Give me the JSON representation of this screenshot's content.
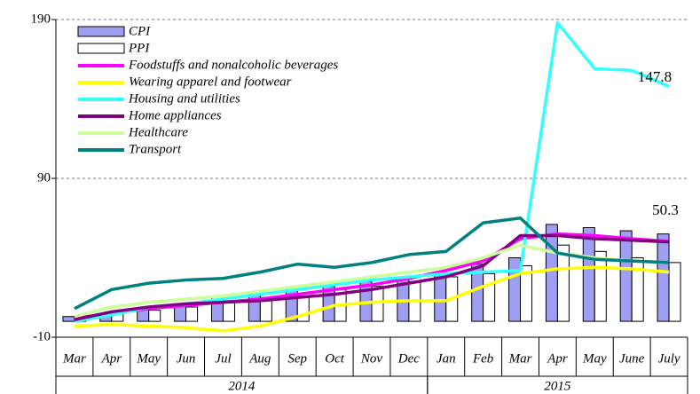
{
  "chart_data": {
    "type": "bar_line",
    "categories": [
      "Mar",
      "Apr",
      "May",
      "Jun",
      "Jul",
      "Aug",
      "Sep",
      "Oct",
      "Nov",
      "Dec",
      "Jan",
      "Feb",
      "Mar",
      "Apr",
      "May",
      "June",
      "July"
    ],
    "groups": [
      {
        "label": "2014",
        "span": 10
      },
      {
        "label": "2015",
        "span": 7
      }
    ],
    "ylim": [
      -10,
      190
    ],
    "yticks": [
      -10,
      90,
      190
    ],
    "grid": true,
    "bars": [
      {
        "name": "CPI",
        "color": "#9f9ff2",
        "values": [
          3,
          5,
          8,
          11,
          14,
          17,
          20,
          22,
          25,
          28,
          31,
          36,
          40,
          61,
          59,
          57,
          55
        ]
      },
      {
        "name": "PPI",
        "color": "#ffffff",
        "values": [
          2,
          5,
          7,
          9,
          13,
          15,
          16,
          20,
          22,
          25,
          28,
          30,
          35,
          48,
          44,
          40,
          37
        ]
      }
    ],
    "series": [
      {
        "name": "Foodstuffs and nonalcoholic beverages",
        "color": "#ff00ff",
        "values": [
          2,
          5,
          8,
          10,
          12,
          14,
          17,
          20,
          23,
          27,
          32,
          38,
          52,
          55,
          54,
          52,
          50.3
        ]
      },
      {
        "name": "Wearing apparel and footwear",
        "color": "#ffff00",
        "values": [
          -3,
          -2,
          -3,
          -4,
          -6,
          -3,
          3,
          10,
          12,
          13,
          13,
          22,
          30,
          33,
          34,
          33,
          31
        ]
      },
      {
        "name": "Housing and utilities",
        "color": "#33ffff",
        "values": [
          0,
          4,
          9,
          11,
          14,
          17,
          20,
          23,
          26,
          28,
          30,
          31,
          32,
          188,
          159,
          158,
          147.8
        ]
      },
      {
        "name": "Home appliances",
        "color": "#800080",
        "values": [
          1,
          6,
          9,
          11,
          12,
          13,
          15,
          17,
          20,
          24,
          28,
          35,
          54,
          54,
          52,
          51,
          50
        ]
      },
      {
        "name": "Healthcare",
        "color": "#ccff99",
        "values": [
          3,
          9,
          12,
          14,
          16,
          19,
          22,
          25,
          28,
          31,
          34,
          40,
          48,
          43,
          40,
          38,
          37
        ]
      },
      {
        "name": "Transport",
        "color": "#008080",
        "values": [
          8,
          20,
          24,
          26,
          27,
          31,
          36,
          34,
          37,
          42,
          44,
          62,
          65,
          43,
          39,
          38,
          37
        ]
      }
    ],
    "annotations": [
      "147.8",
      "50.3"
    ]
  }
}
